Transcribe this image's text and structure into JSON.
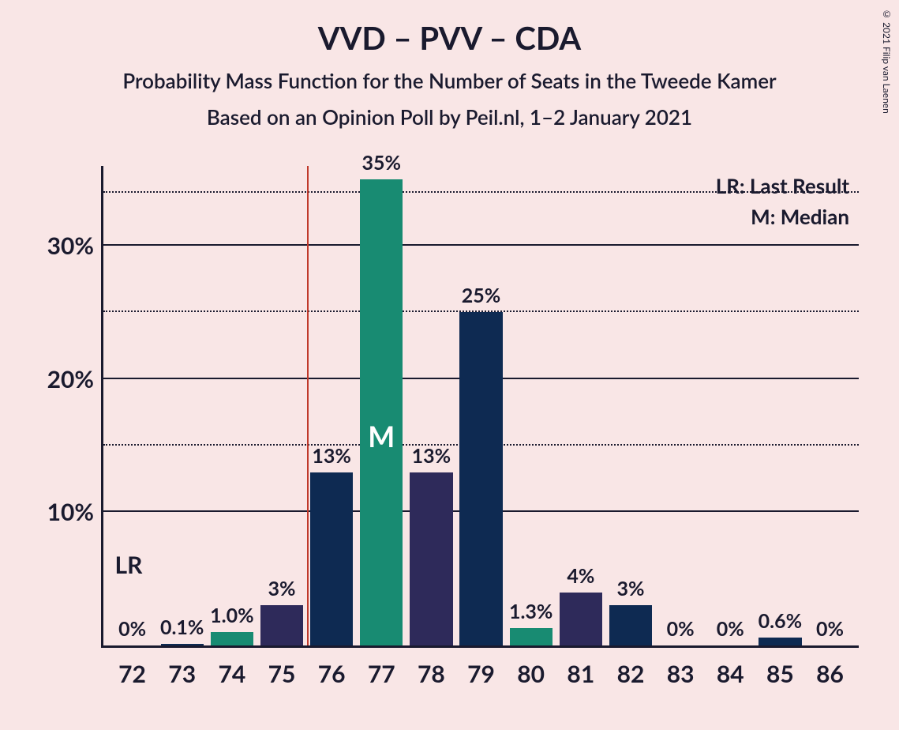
{
  "copyright": "© 2021 Filip van Laenen",
  "title": "VVD – PVV – CDA",
  "subtitle": "Probability Mass Function for the Number of Seats in the Tweede Kamer",
  "subtitle2": "Based on an Opinion Poll by Peil.nl, 1–2 January 2021",
  "legend": {
    "lr": "LR: Last Result",
    "m": "M: Median"
  },
  "lr_text": "LR",
  "median_letter": "M",
  "chart": {
    "type": "bar",
    "background_color": "#f9e6e6",
    "axis_color": "#1a1a2e",
    "text_color": "#1a1a2e",
    "lr_line_color": "#c0392b",
    "lr_position_between": [
      75,
      76
    ],
    "median_bar_index": 5,
    "colors": {
      "teal": "#188b72",
      "navy": "#0e2a52",
      "purple": "#2e2a5a"
    },
    "ylim": [
      0,
      36
    ],
    "y_ticks": [
      {
        "value": 10,
        "label": "10%",
        "style": "solid"
      },
      {
        "value": 15,
        "label": "",
        "style": "dotted"
      },
      {
        "value": 20,
        "label": "20%",
        "style": "solid"
      },
      {
        "value": 25,
        "label": "",
        "style": "dotted"
      },
      {
        "value": 30,
        "label": "30%",
        "style": "solid"
      },
      {
        "value": 34,
        "label": "",
        "style": "dotted"
      }
    ],
    "bars": [
      {
        "x": "72",
        "value": 0,
        "label": "0%",
        "color": "#188b72"
      },
      {
        "x": "73",
        "value": 0.1,
        "label": "0.1%",
        "color": "#0e2a52"
      },
      {
        "x": "74",
        "value": 1.0,
        "label": "1.0%",
        "color": "#188b72"
      },
      {
        "x": "75",
        "value": 3,
        "label": "3%",
        "color": "#2e2a5a"
      },
      {
        "x": "76",
        "value": 13,
        "label": "13%",
        "color": "#0e2a52"
      },
      {
        "x": "77",
        "value": 35,
        "label": "35%",
        "color": "#188b72"
      },
      {
        "x": "78",
        "value": 13,
        "label": "13%",
        "color": "#2e2a5a"
      },
      {
        "x": "79",
        "value": 25,
        "label": "25%",
        "color": "#0e2a52"
      },
      {
        "x": "80",
        "value": 1.3,
        "label": "1.3%",
        "color": "#188b72"
      },
      {
        "x": "81",
        "value": 4,
        "label": "4%",
        "color": "#2e2a5a"
      },
      {
        "x": "82",
        "value": 3,
        "label": "3%",
        "color": "#0e2a52"
      },
      {
        "x": "83",
        "value": 0,
        "label": "0%",
        "color": "#188b72"
      },
      {
        "x": "84",
        "value": 0,
        "label": "0%",
        "color": "#2e2a5a"
      },
      {
        "x": "85",
        "value": 0.6,
        "label": "0.6%",
        "color": "#0e2a52"
      },
      {
        "x": "86",
        "value": 0,
        "label": "0%",
        "color": "#188b72"
      }
    ]
  }
}
